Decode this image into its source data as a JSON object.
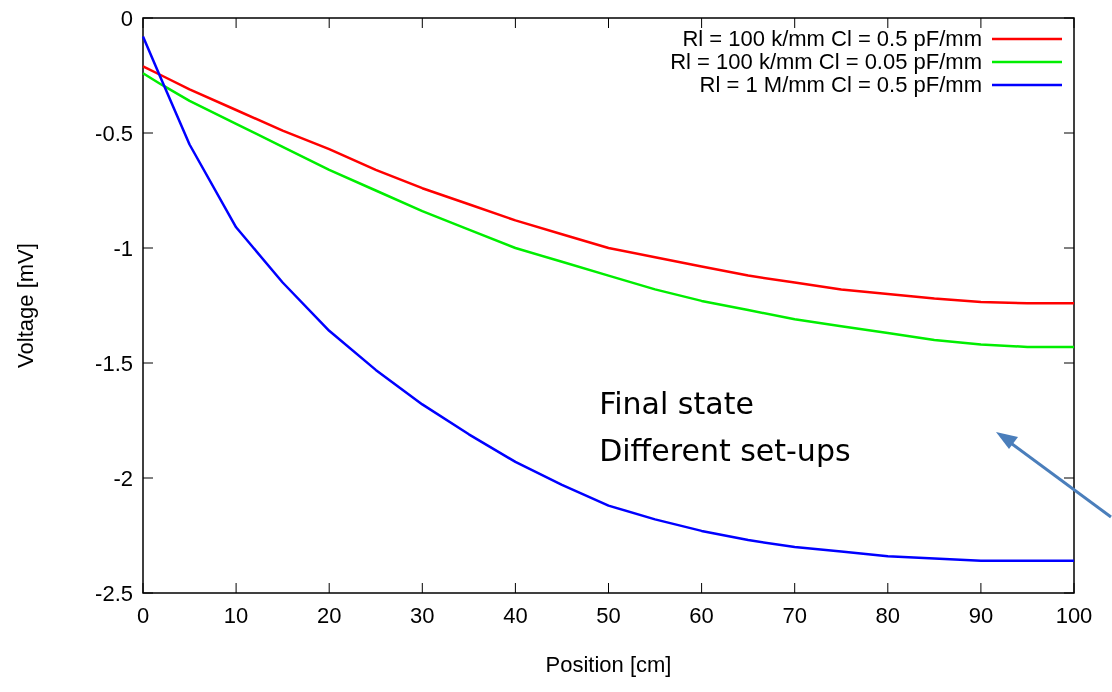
{
  "chart_data": {
    "type": "line",
    "xlabel": "Position [cm]",
    "ylabel": "Voltage [mV]",
    "x": [
      0,
      2,
      5,
      10,
      15,
      20,
      25,
      30,
      35,
      40,
      45,
      50,
      55,
      60,
      65,
      70,
      75,
      80,
      85,
      90,
      95,
      100
    ],
    "series": [
      {
        "name": "Rl = 100 k/mm Cl = 0.5 pF/mm",
        "color": "#ff0000",
        "values": [
          -0.21,
          -0.25,
          -0.31,
          -0.4,
          -0.49,
          -0.57,
          -0.66,
          -0.74,
          -0.81,
          -0.88,
          -0.94,
          -1.0,
          -1.04,
          -1.08,
          -1.12,
          -1.15,
          -1.18,
          -1.2,
          -1.22,
          -1.235,
          -1.24,
          -1.24
        ]
      },
      {
        "name": "Rl = 100 k/mm Cl = 0.05 pF/mm",
        "color": "#00ee00",
        "values": [
          -0.24,
          -0.29,
          -0.36,
          -0.46,
          -0.56,
          -0.66,
          -0.75,
          -0.84,
          -0.92,
          -1.0,
          -1.06,
          -1.12,
          -1.18,
          -1.23,
          -1.27,
          -1.31,
          -1.34,
          -1.37,
          -1.4,
          -1.42,
          -1.43,
          -1.43
        ]
      },
      {
        "name": "Rl = 1 M/mm Cl = 0.5 pF/mm",
        "color": "#0000ff",
        "values": [
          -0.08,
          -0.27,
          -0.55,
          -0.91,
          -1.15,
          -1.36,
          -1.53,
          -1.68,
          -1.81,
          -1.93,
          -2.03,
          -2.12,
          -2.18,
          -2.23,
          -2.27,
          -2.3,
          -2.32,
          -2.34,
          -2.35,
          -2.36,
          -2.36,
          -2.36
        ]
      }
    ],
    "xlim": [
      0,
      100
    ],
    "xticks": [
      0,
      10,
      20,
      30,
      40,
      50,
      60,
      70,
      80,
      90,
      100
    ],
    "ylim": [
      -2.5,
      0
    ],
    "yticks": [
      -2.5,
      -2,
      -1.5,
      -1,
      -0.5,
      0
    ],
    "legend": "top right",
    "grid": false,
    "marker": "none",
    "line_style": "solid",
    "annotations": [
      "Final state\nDifferent set-ups"
    ]
  }
}
